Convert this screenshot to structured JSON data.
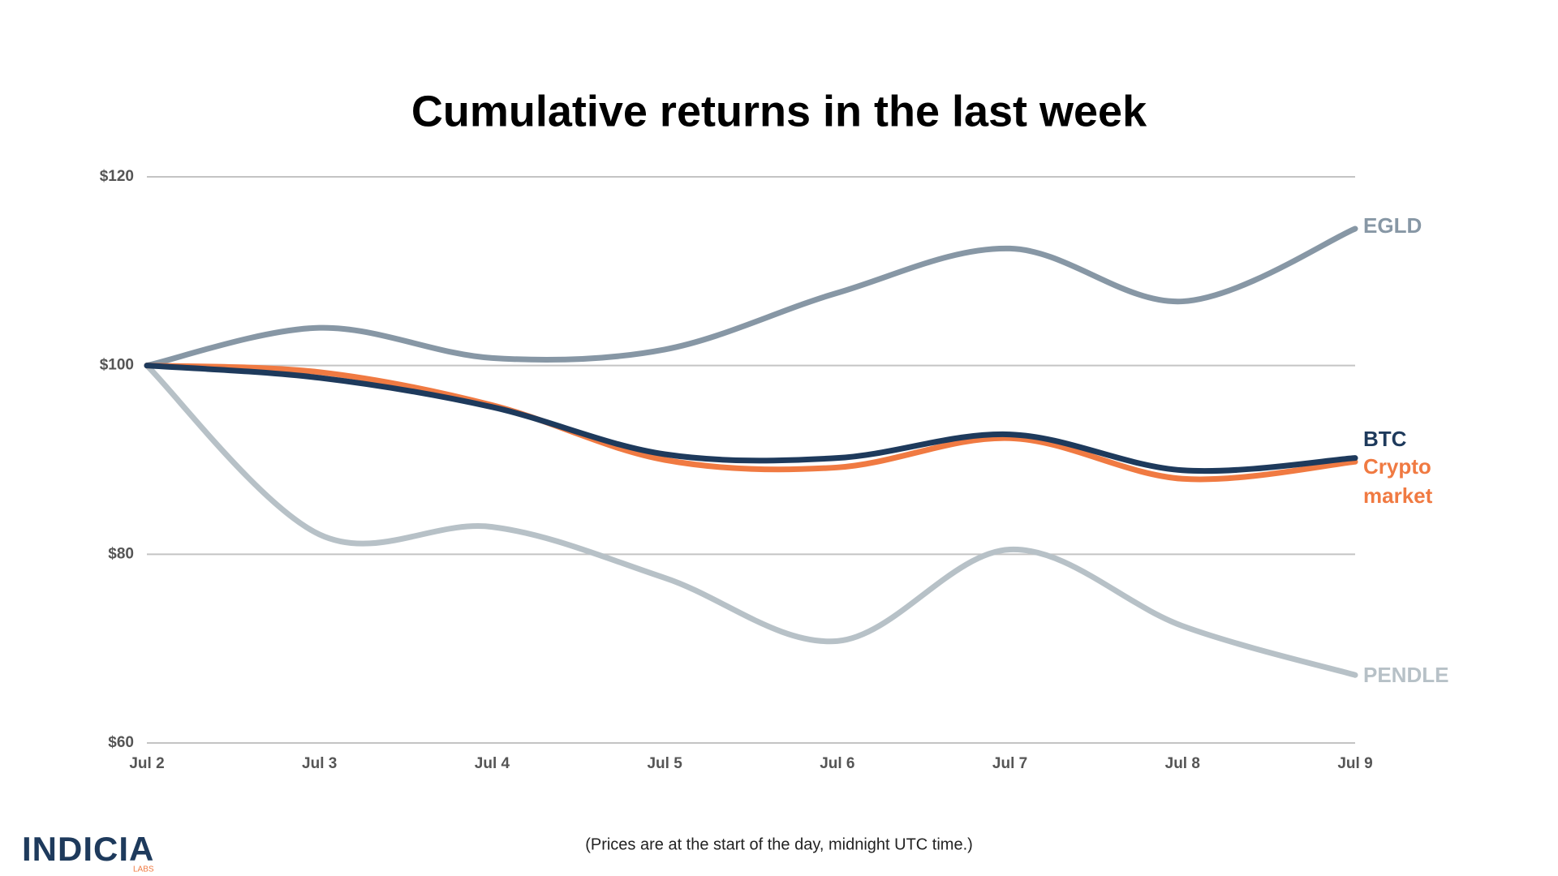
{
  "chart_data": {
    "type": "line",
    "title": "Cumulative returns in the last week",
    "categories": [
      "Jul 2",
      "Jul 3",
      "Jul 4",
      "Jul 5",
      "Jul 6",
      "Jul 7",
      "Jul 8",
      "Jul 9"
    ],
    "series": [
      {
        "name": "EGLD",
        "color": "#8797a5",
        "values": [
          100,
          104,
          100.8,
          101.7,
          107.7,
          112.4,
          106.8,
          114.5
        ]
      },
      {
        "name": "BTC",
        "color": "#1e3a5c",
        "values": [
          100,
          98.7,
          95.6,
          90.6,
          90.2,
          92.7,
          88.9,
          90.2
        ]
      },
      {
        "name": "Crypto market",
        "color": "#f07a42",
        "values": [
          100,
          99.3,
          95.8,
          90,
          89.2,
          92.3,
          88,
          89.8
        ]
      },
      {
        "name": "PENDLE",
        "color": "#b7c1c7",
        "values": [
          100,
          82.1,
          82.9,
          77.5,
          70.8,
          80.5,
          72.4,
          67.2
        ]
      }
    ],
    "ylim": [
      60,
      120
    ],
    "yticks": [
      {
        "value": 60,
        "label": "$60"
      },
      {
        "value": 80,
        "label": "$80"
      },
      {
        "value": 100,
        "label": "$100"
      },
      {
        "value": 120,
        "label": "$120"
      }
    ],
    "grid": true,
    "legend": "line-end",
    "footnote": "(Prices are at the start of the day, midnight UTC time.)"
  },
  "logo": {
    "name": "INDICIA",
    "sub": "LABS"
  }
}
